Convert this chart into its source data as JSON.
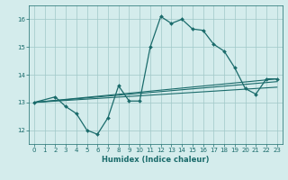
{
  "xlabel": "Humidex (Indice chaleur)",
  "xlim": [
    -0.5,
    23.5
  ],
  "ylim": [
    11.5,
    16.5
  ],
  "yticks": [
    12,
    13,
    14,
    15,
    16
  ],
  "xticks": [
    0,
    1,
    2,
    3,
    4,
    5,
    6,
    7,
    8,
    9,
    10,
    11,
    12,
    13,
    14,
    15,
    16,
    17,
    18,
    19,
    20,
    21,
    22,
    23
  ],
  "background_color": "#d4ecec",
  "grid_color": "#a0c8c8",
  "line_color": "#1a6b6b",
  "main_curve": {
    "x": [
      0,
      2,
      3,
      4,
      5,
      6,
      7,
      8,
      9,
      10,
      11,
      12,
      13,
      14,
      15,
      16,
      17,
      18,
      19,
      20,
      21,
      22,
      23
    ],
    "y": [
      13.0,
      13.2,
      12.85,
      12.6,
      12.0,
      11.85,
      12.45,
      13.6,
      13.05,
      13.05,
      15.0,
      16.1,
      15.85,
      16.0,
      15.65,
      15.6,
      15.1,
      14.85,
      14.25,
      13.5,
      13.3,
      13.85,
      13.85
    ]
  },
  "trend_lines": [
    {
      "x": [
        0,
        23
      ],
      "y": [
        13.0,
        13.85
      ]
    },
    {
      "x": [
        0,
        23
      ],
      "y": [
        13.0,
        13.75
      ]
    },
    {
      "x": [
        0,
        23
      ],
      "y": [
        13.0,
        13.55
      ]
    }
  ]
}
